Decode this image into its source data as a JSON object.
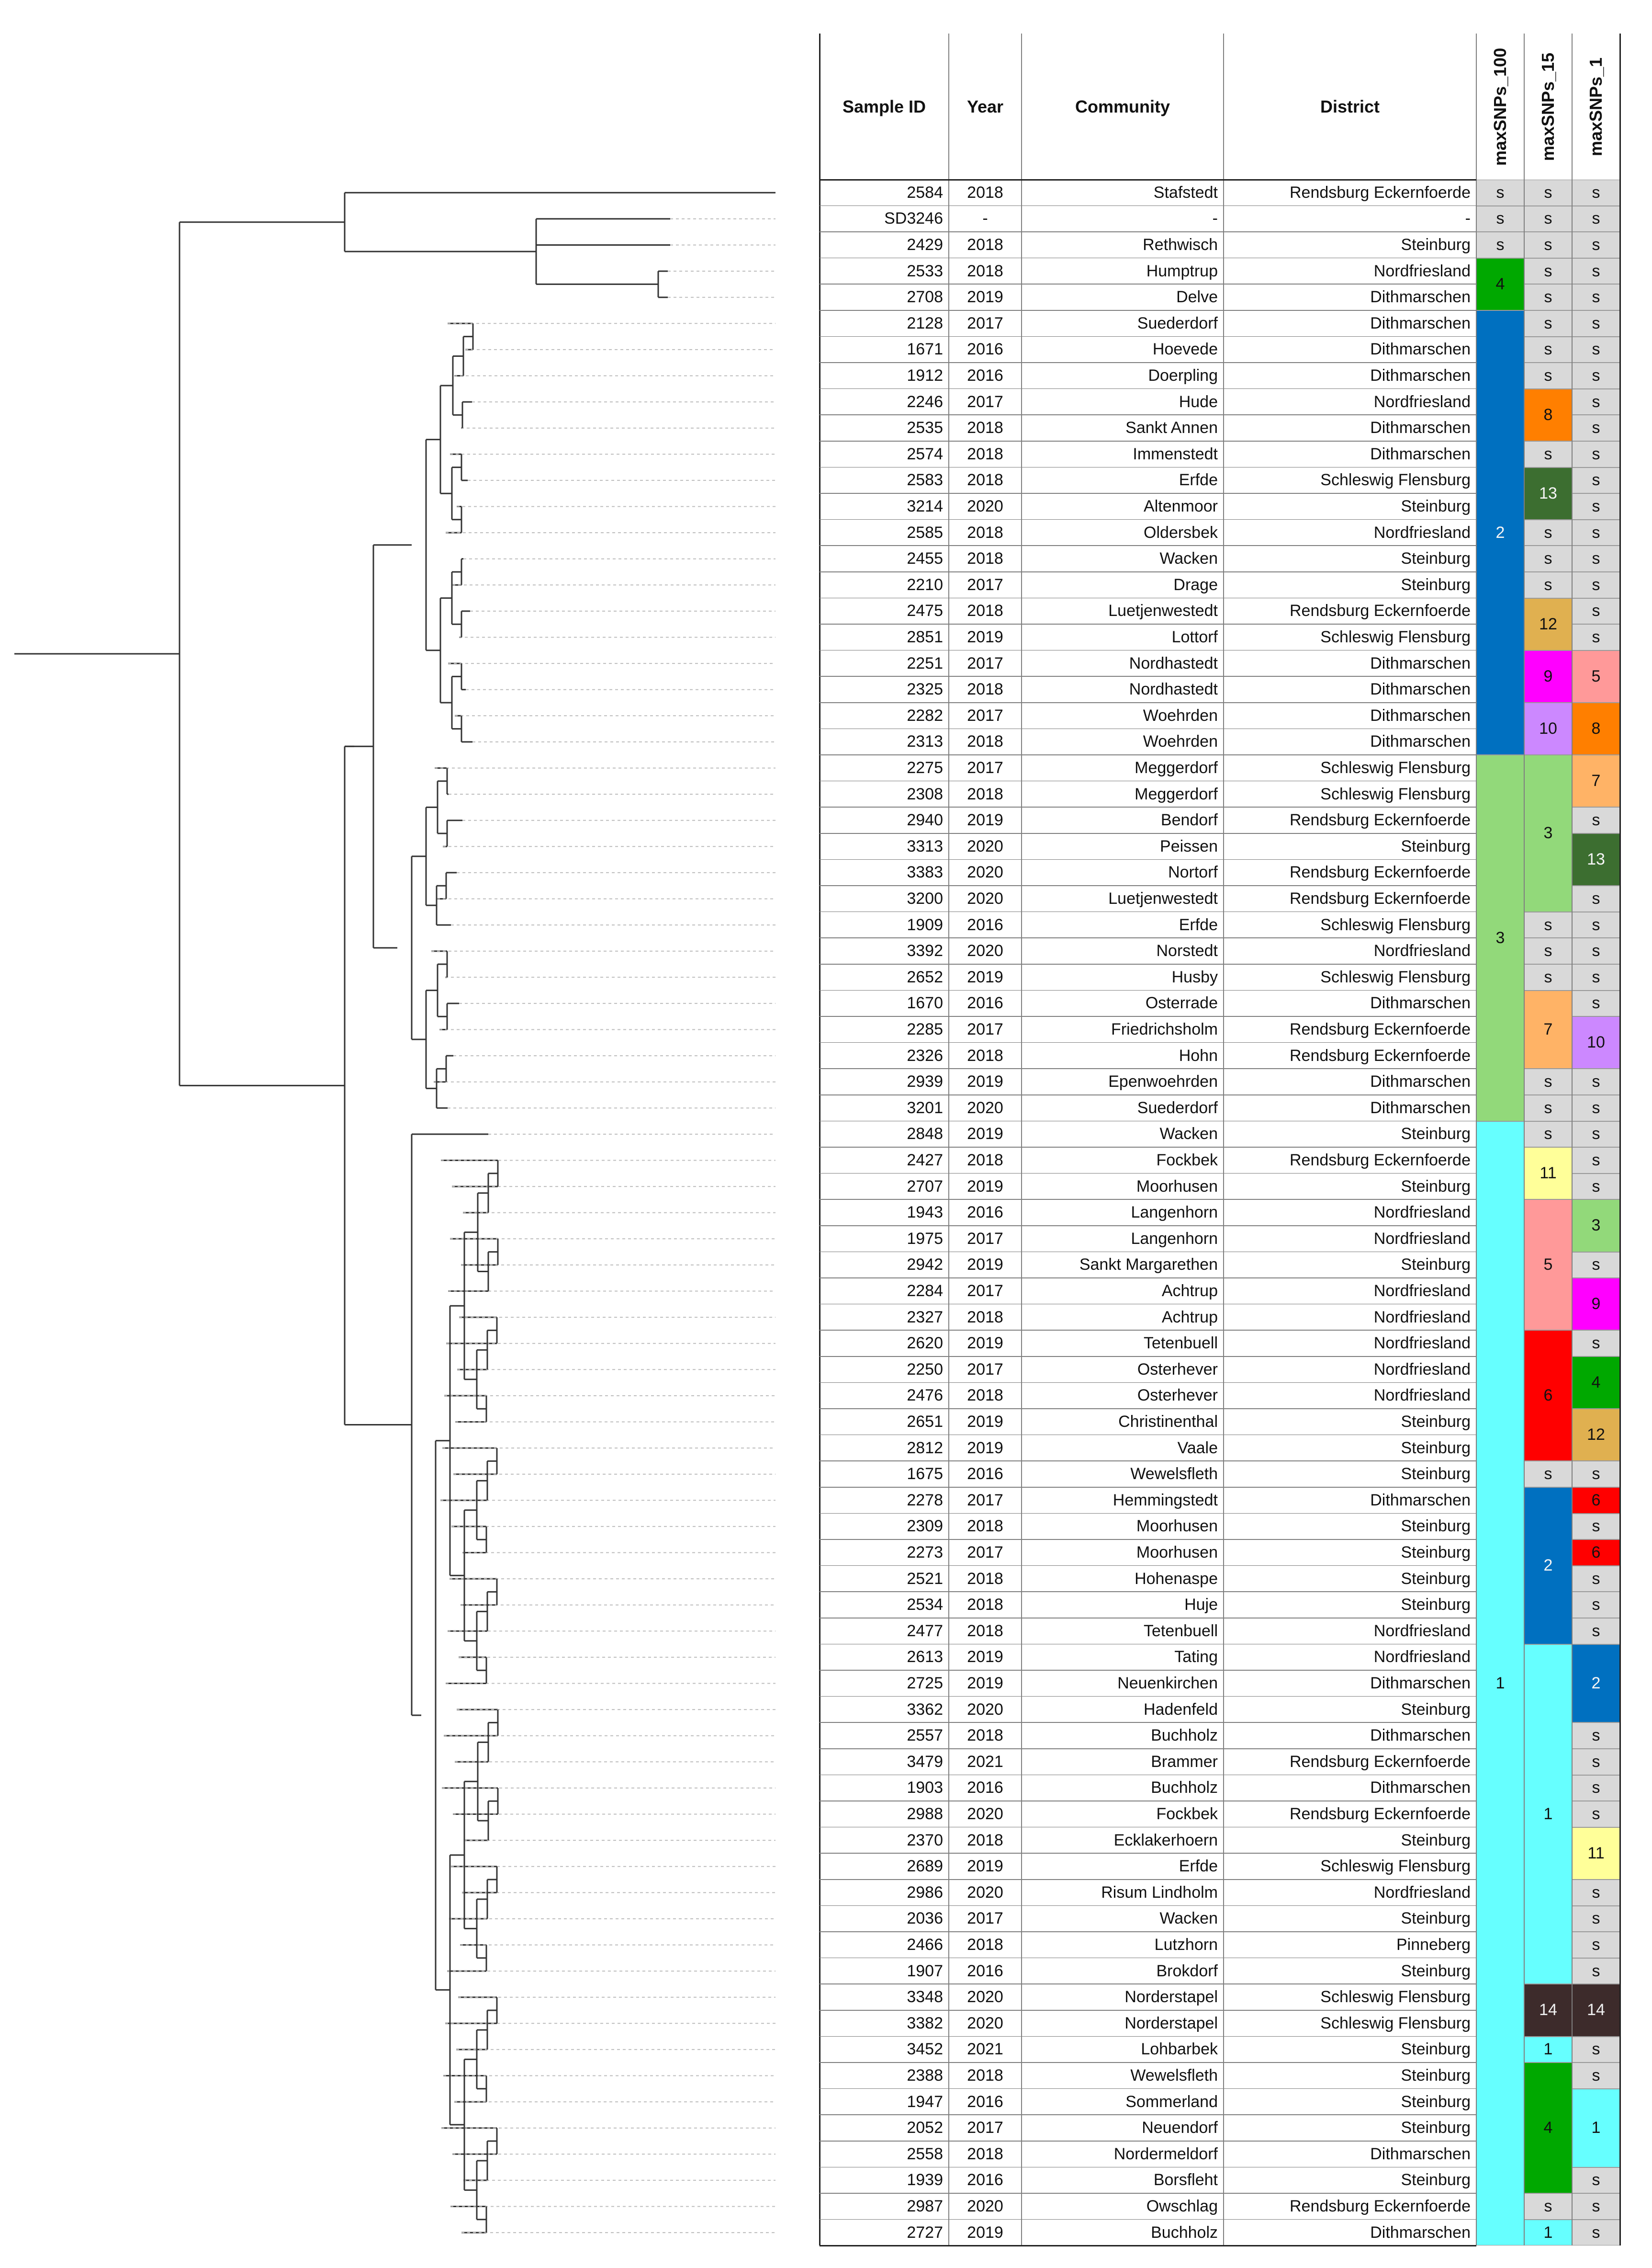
{
  "table": {
    "headers": {
      "sample_id": "Sample ID",
      "year": "Year",
      "community": "Community",
      "district": "District",
      "c1": "maxSNPs_100",
      "c2": "maxSNPs_15",
      "c3": "maxSNPs_1"
    },
    "rows": [
      [
        "2584",
        "2018",
        "Stafstedt",
        "Rendsburg Eckernfoerde"
      ],
      [
        "SD3246",
        "-",
        "-",
        "-"
      ],
      [
        "2429",
        "2018",
        "Rethwisch",
        "Steinburg"
      ],
      [
        "2533",
        "2018",
        "Humptrup",
        "Nordfriesland"
      ],
      [
        "2708",
        "2019",
        "Delve",
        "Dithmarschen"
      ],
      [
        "2128",
        "2017",
        "Suederdorf",
        "Dithmarschen"
      ],
      [
        "1671",
        "2016",
        "Hoevede",
        "Dithmarschen"
      ],
      [
        "1912",
        "2016",
        "Doerpling",
        "Dithmarschen"
      ],
      [
        "2246",
        "2017",
        "Hude",
        "Nordfriesland"
      ],
      [
        "2535",
        "2018",
        "Sankt Annen",
        "Dithmarschen"
      ],
      [
        "2574",
        "2018",
        "Immenstedt",
        "Dithmarschen"
      ],
      [
        "2583",
        "2018",
        "Erfde",
        "Schleswig Flensburg"
      ],
      [
        "3214",
        "2020",
        "Altenmoor",
        "Steinburg"
      ],
      [
        "2585",
        "2018",
        "Oldersbek",
        "Nordfriesland"
      ],
      [
        "2455",
        "2018",
        "Wacken",
        "Steinburg"
      ],
      [
        "2210",
        "2017",
        "Drage",
        "Steinburg"
      ],
      [
        "2475",
        "2018",
        "Luetjenwestedt",
        "Rendsburg Eckernfoerde"
      ],
      [
        "2851",
        "2019",
        "Lottorf",
        "Schleswig Flensburg"
      ],
      [
        "2251",
        "2017",
        "Nordhastedt",
        "Dithmarschen"
      ],
      [
        "2325",
        "2018",
        "Nordhastedt",
        "Dithmarschen"
      ],
      [
        "2282",
        "2017",
        "Woehrden",
        "Dithmarschen"
      ],
      [
        "2313",
        "2018",
        "Woehrden",
        "Dithmarschen"
      ],
      [
        "2275",
        "2017",
        "Meggerdorf",
        "Schleswig Flensburg"
      ],
      [
        "2308",
        "2018",
        "Meggerdorf",
        "Schleswig Flensburg"
      ],
      [
        "2940",
        "2019",
        "Bendorf",
        "Rendsburg Eckernfoerde"
      ],
      [
        "3313",
        "2020",
        "Peissen",
        "Steinburg"
      ],
      [
        "3383",
        "2020",
        "Nortorf",
        "Rendsburg Eckernfoerde"
      ],
      [
        "3200",
        "2020",
        "Luetjenwestedt",
        "Rendsburg Eckernfoerde"
      ],
      [
        "1909",
        "2016",
        "Erfde",
        "Schleswig Flensburg"
      ],
      [
        "3392",
        "2020",
        "Norstedt",
        "Nordfriesland"
      ],
      [
        "2652",
        "2019",
        "Husby",
        "Schleswig Flensburg"
      ],
      [
        "1670",
        "2016",
        "Osterrade",
        "Dithmarschen"
      ],
      [
        "2285",
        "2017",
        "Friedrichsholm",
        "Rendsburg Eckernfoerde"
      ],
      [
        "2326",
        "2018",
        "Hohn",
        "Rendsburg Eckernfoerde"
      ],
      [
        "2939",
        "2019",
        "Epenwoehrden",
        "Dithmarschen"
      ],
      [
        "3201",
        "2020",
        "Suederdorf",
        "Dithmarschen"
      ],
      [
        "2848",
        "2019",
        "Wacken",
        "Steinburg"
      ],
      [
        "2427",
        "2018",
        "Fockbek",
        "Rendsburg Eckernfoerde"
      ],
      [
        "2707",
        "2019",
        "Moorhusen",
        "Steinburg"
      ],
      [
        "1943",
        "2016",
        "Langenhorn",
        "Nordfriesland"
      ],
      [
        "1975",
        "2017",
        "Langenhorn",
        "Nordfriesland"
      ],
      [
        "2942",
        "2019",
        "Sankt Margarethen",
        "Steinburg"
      ],
      [
        "2284",
        "2017",
        "Achtrup",
        "Nordfriesland"
      ],
      [
        "2327",
        "2018",
        "Achtrup",
        "Nordfriesland"
      ],
      [
        "2620",
        "2019",
        "Tetenbuell",
        "Nordfriesland"
      ],
      [
        "2250",
        "2017",
        "Osterhever",
        "Nordfriesland"
      ],
      [
        "2476",
        "2018",
        "Osterhever",
        "Nordfriesland"
      ],
      [
        "2651",
        "2019",
        "Christinenthal",
        "Steinburg"
      ],
      [
        "2812",
        "2019",
        "Vaale",
        "Steinburg"
      ],
      [
        "1675",
        "2016",
        "Wewelsfleth",
        "Steinburg"
      ],
      [
        "2278",
        "2017",
        "Hemmingstedt",
        "Dithmarschen"
      ],
      [
        "2309",
        "2018",
        "Moorhusen",
        "Steinburg"
      ],
      [
        "2273",
        "2017",
        "Moorhusen",
        "Steinburg"
      ],
      [
        "2521",
        "2018",
        "Hohenaspe",
        "Steinburg"
      ],
      [
        "2534",
        "2018",
        "Huje",
        "Steinburg"
      ],
      [
        "2477",
        "2018",
        "Tetenbuell",
        "Nordfriesland"
      ],
      [
        "2613",
        "2019",
        "Tating",
        "Nordfriesland"
      ],
      [
        "2725",
        "2019",
        "Neuenkirchen",
        "Dithmarschen"
      ],
      [
        "3362",
        "2020",
        "Hadenfeld",
        "Steinburg"
      ],
      [
        "2557",
        "2018",
        "Buchholz",
        "Dithmarschen"
      ],
      [
        "3479",
        "2021",
        "Brammer",
        "Rendsburg Eckernfoerde"
      ],
      [
        "1903",
        "2016",
        "Buchholz",
        "Dithmarschen"
      ],
      [
        "2988",
        "2020",
        "Fockbek",
        "Rendsburg Eckernfoerde"
      ],
      [
        "2370",
        "2018",
        "Ecklakerhoern",
        "Steinburg"
      ],
      [
        "2689",
        "2019",
        "Erfde",
        "Schleswig Flensburg"
      ],
      [
        "2986",
        "2020",
        "Risum Lindholm",
        "Nordfriesland"
      ],
      [
        "2036",
        "2017",
        "Wacken",
        "Steinburg"
      ],
      [
        "2466",
        "2018",
        "Lutzhorn",
        "Pinneberg"
      ],
      [
        "1907",
        "2016",
        "Brokdorf",
        "Steinburg"
      ],
      [
        "3348",
        "2020",
        "Norderstapel",
        "Schleswig Flensburg"
      ],
      [
        "3382",
        "2020",
        "Norderstapel",
        "Schleswig Flensburg"
      ],
      [
        "3452",
        "2021",
        "Lohbarbek",
        "Steinburg"
      ],
      [
        "2388",
        "2018",
        "Wewelsfleth",
        "Steinburg"
      ],
      [
        "1947",
        "2016",
        "Sommerland",
        "Steinburg"
      ],
      [
        "2052",
        "2017",
        "Neuendorf",
        "Steinburg"
      ],
      [
        "2558",
        "2018",
        "Nordermeldorf",
        "Dithmarschen"
      ],
      [
        "1939",
        "2016",
        "Borsfleht",
        "Steinburg"
      ],
      [
        "2987",
        "2020",
        "Owschlag",
        "Rendsburg Eckernfoerde"
      ],
      [
        "2727",
        "2019",
        "Buchholz",
        "Dithmarschen"
      ]
    ]
  },
  "clusters": {
    "maxSNPs_100": [
      {
        "start": 0,
        "end": 0,
        "label": "s",
        "color": "#d9d9d9"
      },
      {
        "start": 1,
        "end": 1,
        "label": "s",
        "color": "#d9d9d9"
      },
      {
        "start": 2,
        "end": 2,
        "label": "s",
        "color": "#d9d9d9"
      },
      {
        "start": 3,
        "end": 4,
        "label": "4",
        "color": "#00a800"
      },
      {
        "start": 5,
        "end": 21,
        "label": "2",
        "color": "#0070c0"
      },
      {
        "start": 22,
        "end": 35,
        "label": "3",
        "color": "#92d97a"
      },
      {
        "start": 36,
        "end": 78,
        "label": "1",
        "color": "#66ffff"
      }
    ],
    "maxSNPs_15": [
      {
        "start": 0,
        "end": 7,
        "label": "s",
        "color": "#d9d9d9",
        "single": true
      },
      {
        "start": 8,
        "end": 9,
        "label": "8",
        "color": "#ff7f00"
      },
      {
        "start": 10,
        "end": 10,
        "label": "s",
        "color": "#d9d9d9"
      },
      {
        "start": 11,
        "end": 12,
        "label": "13",
        "color": "#3c6e30"
      },
      {
        "start": 13,
        "end": 15,
        "label": "s",
        "color": "#d9d9d9",
        "single": true
      },
      {
        "start": 16,
        "end": 17,
        "label": "12",
        "color": "#e0b050"
      },
      {
        "start": 18,
        "end": 19,
        "label": "9",
        "color": "#ff00ff"
      },
      {
        "start": 20,
        "end": 21,
        "label": "10",
        "color": "#cc88ff"
      },
      {
        "start": 22,
        "end": 27,
        "label": "3",
        "color": "#92d97a"
      },
      {
        "start": 28,
        "end": 30,
        "label": "s",
        "color": "#d9d9d9",
        "single": true
      },
      {
        "start": 31,
        "end": 33,
        "label": "7",
        "color": "#ffb366"
      },
      {
        "start": 34,
        "end": 36,
        "label": "s",
        "color": "#d9d9d9",
        "single": true
      },
      {
        "start": 37,
        "end": 38,
        "label": "11",
        "color": "#ffff99"
      },
      {
        "start": 39,
        "end": 43,
        "label": "5",
        "color": "#ff9999"
      },
      {
        "start": 44,
        "end": 48,
        "label": "6",
        "color": "#ff0000"
      },
      {
        "start": 49,
        "end": 49,
        "label": "s",
        "color": "#d9d9d9"
      },
      {
        "start": 50,
        "end": 55,
        "label": "2",
        "color": "#0070c0"
      },
      {
        "start": 56,
        "end": 68,
        "label": "1",
        "color": "#66ffff"
      },
      {
        "start": 69,
        "end": 70,
        "label": "14",
        "color": "#3d2b2b"
      },
      {
        "start": 71,
        "end": 71,
        "label": "1",
        "color": "#66ffff"
      },
      {
        "start": 72,
        "end": 76,
        "label": "4",
        "color": "#00a800"
      },
      {
        "start": 77,
        "end": 77,
        "label": "s",
        "color": "#d9d9d9"
      },
      {
        "start": 78,
        "end": 78,
        "label": "1",
        "color": "#66ffff"
      }
    ],
    "maxSNPs_1": [
      {
        "start": 0,
        "end": 17,
        "label": "s",
        "color": "#d9d9d9",
        "single": true
      },
      {
        "start": 18,
        "end": 19,
        "label": "5",
        "color": "#ff9999"
      },
      {
        "start": 20,
        "end": 21,
        "label": "8",
        "color": "#ff7f00"
      },
      {
        "start": 22,
        "end": 23,
        "label": "7",
        "color": "#ffb366"
      },
      {
        "start": 24,
        "end": 24,
        "label": "s",
        "color": "#d9d9d9"
      },
      {
        "start": 25,
        "end": 26,
        "label": "13",
        "color": "#3c6e30"
      },
      {
        "start": 27,
        "end": 31,
        "label": "s",
        "color": "#d9d9d9",
        "single": true
      },
      {
        "start": 32,
        "end": 33,
        "label": "10",
        "color": "#cc88ff"
      },
      {
        "start": 34,
        "end": 38,
        "label": "s",
        "color": "#d9d9d9",
        "single": true
      },
      {
        "start": 39,
        "end": 40,
        "label": "3",
        "color": "#92d97a"
      },
      {
        "start": 41,
        "end": 41,
        "label": "s",
        "color": "#d9d9d9"
      },
      {
        "start": 42,
        "end": 43,
        "label": "9",
        "color": "#ff00ff"
      },
      {
        "start": 44,
        "end": 44,
        "label": "s",
        "color": "#d9d9d9"
      },
      {
        "start": 45,
        "end": 46,
        "label": "4",
        "color": "#00a800"
      },
      {
        "start": 47,
        "end": 48,
        "label": "12",
        "color": "#e0b050"
      },
      {
        "start": 49,
        "end": 49,
        "label": "s",
        "color": "#d9d9d9"
      },
      {
        "start": 50,
        "end": 50,
        "label": "6",
        "color": "#ff0000"
      },
      {
        "start": 51,
        "end": 51,
        "label": "s",
        "color": "#d9d9d9"
      },
      {
        "start": 52,
        "end": 52,
        "label": "6",
        "color": "#ff0000"
      },
      {
        "start": 53,
        "end": 55,
        "label": "s",
        "color": "#d9d9d9",
        "single": true
      },
      {
        "start": 56,
        "end": 58,
        "label": "2",
        "color": "#0070c0"
      },
      {
        "start": 59,
        "end": 62,
        "label": "s",
        "color": "#d9d9d9",
        "single": true
      },
      {
        "start": 63,
        "end": 64,
        "label": "11",
        "color": "#ffff99"
      },
      {
        "start": 65,
        "end": 68,
        "label": "s",
        "color": "#d9d9d9",
        "single": true
      },
      {
        "start": 69,
        "end": 70,
        "label": "14",
        "color": "#3d2b2b"
      },
      {
        "start": 71,
        "end": 72,
        "label": "s",
        "color": "#d9d9d9",
        "single": true
      },
      {
        "start": 73,
        "end": 75,
        "label": "1",
        "color": "#66ffff"
      },
      {
        "start": 76,
        "end": 78,
        "label": "s",
        "color": "#d9d9d9",
        "single": true
      }
    ]
  }
}
